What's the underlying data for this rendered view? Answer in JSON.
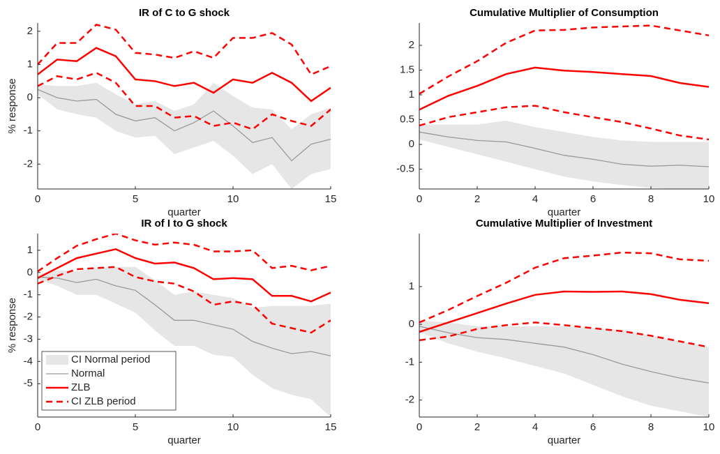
{
  "chart_data": [
    {
      "type": "line",
      "title": "IR of C to G shock",
      "xlabel": "quarter",
      "ylabel": "% response",
      "x": [
        0,
        1,
        2,
        3,
        4,
        5,
        6,
        7,
        8,
        9,
        10,
        11,
        12,
        13,
        14,
        15
      ],
      "xlim": [
        0,
        15
      ],
      "xticks": [
        0,
        5,
        10,
        15
      ],
      "ylim": [
        -2.75,
        2.25
      ],
      "yticks": [
        -2,
        -1,
        0,
        1,
        2
      ],
      "series": [
        {
          "style": "band",
          "color": "#e6e6e6",
          "lower": [
            0.1,
            -0.35,
            -0.5,
            -0.6,
            -1.0,
            -1.2,
            -1.15,
            -1.7,
            -1.5,
            -1.3,
            -1.75,
            -2.3,
            -2.0,
            -2.75,
            -2.3,
            -2.15
          ],
          "upper": [
            0.4,
            0.35,
            0.35,
            0.45,
            0.1,
            -0.2,
            -0.1,
            -0.4,
            -0.2,
            0.45,
            0.05,
            -0.3,
            -0.35,
            -0.95,
            -0.5,
            -0.3
          ]
        },
        {
          "style": "thin",
          "color": "#999999",
          "values": [
            0.25,
            0.0,
            -0.1,
            -0.05,
            -0.5,
            -0.7,
            -0.6,
            -1.0,
            -0.75,
            -0.4,
            -0.85,
            -1.35,
            -1.2,
            -1.9,
            -1.4,
            -1.25
          ]
        },
        {
          "style": "solid",
          "color": "#ff0000",
          "values": [
            0.7,
            1.15,
            1.1,
            1.5,
            1.25,
            0.55,
            0.5,
            0.35,
            0.45,
            0.15,
            0.55,
            0.45,
            0.75,
            0.45,
            -0.1,
            0.3
          ]
        },
        {
          "style": "dashed",
          "color": "#ff0000",
          "lower": [
            0.35,
            0.65,
            0.55,
            0.75,
            0.45,
            -0.25,
            -0.25,
            -0.6,
            -0.55,
            -0.85,
            -0.75,
            -0.95,
            -0.5,
            -0.7,
            -0.85,
            -0.35
          ],
          "upper": [
            1.0,
            1.65,
            1.65,
            2.2,
            2.05,
            1.35,
            1.3,
            1.2,
            1.4,
            1.2,
            1.8,
            1.8,
            1.95,
            1.6,
            0.7,
            0.95
          ]
        }
      ]
    },
    {
      "type": "line",
      "title": "Cumulative Multiplier of Consumption",
      "xlabel": "quarter",
      "x": [
        0,
        1,
        2,
        3,
        4,
        5,
        6,
        7,
        8,
        9,
        10
      ],
      "xlim": [
        0,
        10
      ],
      "xticks": [
        0,
        2,
        4,
        6,
        8,
        10
      ],
      "ylim": [
        -0.9,
        2.45
      ],
      "yticks": [
        -0.5,
        0,
        0.5,
        1,
        1.5,
        2
      ],
      "series": [
        {
          "style": "band",
          "color": "#e6e6e6",
          "lower": [
            0.1,
            -0.05,
            -0.2,
            -0.35,
            -0.5,
            -0.65,
            -0.75,
            -0.82,
            -0.88,
            -0.9,
            -0.9
          ],
          "upper": [
            0.4,
            0.4,
            0.4,
            0.48,
            0.35,
            0.25,
            0.15,
            0.08,
            0.05,
            0.05,
            0.05
          ]
        },
        {
          "style": "thin",
          "color": "#999999",
          "values": [
            0.25,
            0.15,
            0.08,
            0.05,
            -0.08,
            -0.22,
            -0.3,
            -0.4,
            -0.44,
            -0.42,
            -0.45
          ]
        },
        {
          "style": "solid",
          "color": "#ff0000",
          "values": [
            0.7,
            0.98,
            1.18,
            1.42,
            1.55,
            1.49,
            1.46,
            1.42,
            1.38,
            1.24,
            1.16
          ]
        },
        {
          "style": "dashed",
          "color": "#ff0000",
          "lower": [
            0.38,
            0.55,
            0.65,
            0.75,
            0.78,
            0.65,
            0.55,
            0.45,
            0.32,
            0.18,
            0.1
          ],
          "upper": [
            1.02,
            1.37,
            1.68,
            2.05,
            2.3,
            2.31,
            2.36,
            2.38,
            2.4,
            2.3,
            2.2
          ]
        }
      ]
    },
    {
      "type": "line",
      "title": "IR of I to G shock",
      "xlabel": "quarter",
      "ylabel": "% response",
      "legend": "lower left",
      "x": [
        0,
        1,
        2,
        3,
        4,
        5,
        6,
        7,
        8,
        9,
        10,
        11,
        12,
        13,
        14,
        15
      ],
      "xlim": [
        0,
        15
      ],
      "xticks": [
        0,
        5,
        10,
        15
      ],
      "ylim": [
        -6.5,
        1.75
      ],
      "yticks": [
        -5,
        -4,
        -3,
        -2,
        -1,
        0,
        1
      ],
      "series": [
        {
          "name": "CI Normal period",
          "style": "band",
          "color": "#e6e6e6",
          "lower": [
            -0.3,
            -0.6,
            -1.0,
            -1.0,
            -1.4,
            -1.8,
            -2.6,
            -3.3,
            -3.3,
            -3.7,
            -3.8,
            -4.6,
            -5.2,
            -5.5,
            -5.7,
            -6.5
          ],
          "upper": [
            -0.1,
            0.1,
            0.05,
            0.2,
            0.25,
            0.25,
            -0.35,
            -1.0,
            -0.85,
            -1.0,
            -1.15,
            -1.6,
            -1.5,
            -1.5,
            -1.5,
            -1.4
          ]
        },
        {
          "name": "Normal",
          "style": "thin",
          "color": "#999999",
          "values": [
            -0.2,
            -0.25,
            -0.45,
            -0.3,
            -0.6,
            -0.8,
            -1.45,
            -2.15,
            -2.15,
            -2.35,
            -2.55,
            -3.1,
            -3.4,
            -3.65,
            -3.55,
            -3.75
          ]
        },
        {
          "name": "ZLB",
          "style": "solid",
          "color": "#ff0000",
          "values": [
            -0.25,
            0.2,
            0.65,
            0.85,
            1.05,
            0.65,
            0.4,
            0.45,
            0.2,
            -0.3,
            -0.25,
            -0.3,
            -1.05,
            -1.05,
            -1.3,
            -0.9
          ]
        },
        {
          "name": "CI ZLB period",
          "style": "dashed",
          "color": "#ff0000",
          "lower": [
            -0.5,
            -0.15,
            0.15,
            0.2,
            0.25,
            -0.2,
            -0.4,
            -0.5,
            -0.85,
            -1.45,
            -1.3,
            -1.45,
            -2.3,
            -2.5,
            -2.7,
            -2.15
          ],
          "upper": [
            0.05,
            0.65,
            1.2,
            1.5,
            1.75,
            1.45,
            1.25,
            1.35,
            1.25,
            0.95,
            0.95,
            1.0,
            0.2,
            0.3,
            0.1,
            0.3
          ]
        }
      ]
    },
    {
      "type": "line",
      "title": "Cumulative Multiplier of Investment",
      "xlabel": "quarter",
      "x": [
        0,
        1,
        2,
        3,
        4,
        5,
        6,
        7,
        8,
        9,
        10
      ],
      "xlim": [
        0,
        10
      ],
      "xticks": [
        0,
        2,
        4,
        6,
        8,
        10
      ],
      "ylim": [
        -2.45,
        2.4
      ],
      "yticks": [
        -2,
        -1,
        0,
        1
      ],
      "series": [
        {
          "style": "band",
          "color": "#e6e6e6",
          "lower": [
            -0.2,
            -0.5,
            -0.72,
            -0.9,
            -1.1,
            -1.3,
            -1.6,
            -1.9,
            -2.15,
            -2.3,
            -2.45
          ],
          "upper": [
            0.1,
            0.05,
            -0.05,
            -0.05,
            -0.05,
            -0.05,
            -0.1,
            -0.15,
            -0.3,
            -0.45,
            -0.6
          ]
        },
        {
          "style": "thin",
          "color": "#999999",
          "values": [
            -0.05,
            -0.22,
            -0.35,
            -0.4,
            -0.5,
            -0.6,
            -0.8,
            -1.05,
            -1.25,
            -1.42,
            -1.55
          ]
        },
        {
          "style": "solid",
          "color": "#ff0000",
          "values": [
            -0.2,
            0.05,
            0.3,
            0.55,
            0.78,
            0.87,
            0.86,
            0.87,
            0.8,
            0.65,
            0.56
          ]
        },
        {
          "style": "dashed",
          "color": "#ff0000",
          "lower": [
            -0.42,
            -0.32,
            -0.12,
            -0.02,
            0.05,
            -0.02,
            -0.1,
            -0.18,
            -0.3,
            -0.45,
            -0.6
          ],
          "upper": [
            0.05,
            0.38,
            0.75,
            1.1,
            1.5,
            1.75,
            1.82,
            1.9,
            1.88,
            1.72,
            1.68
          ]
        }
      ]
    }
  ]
}
